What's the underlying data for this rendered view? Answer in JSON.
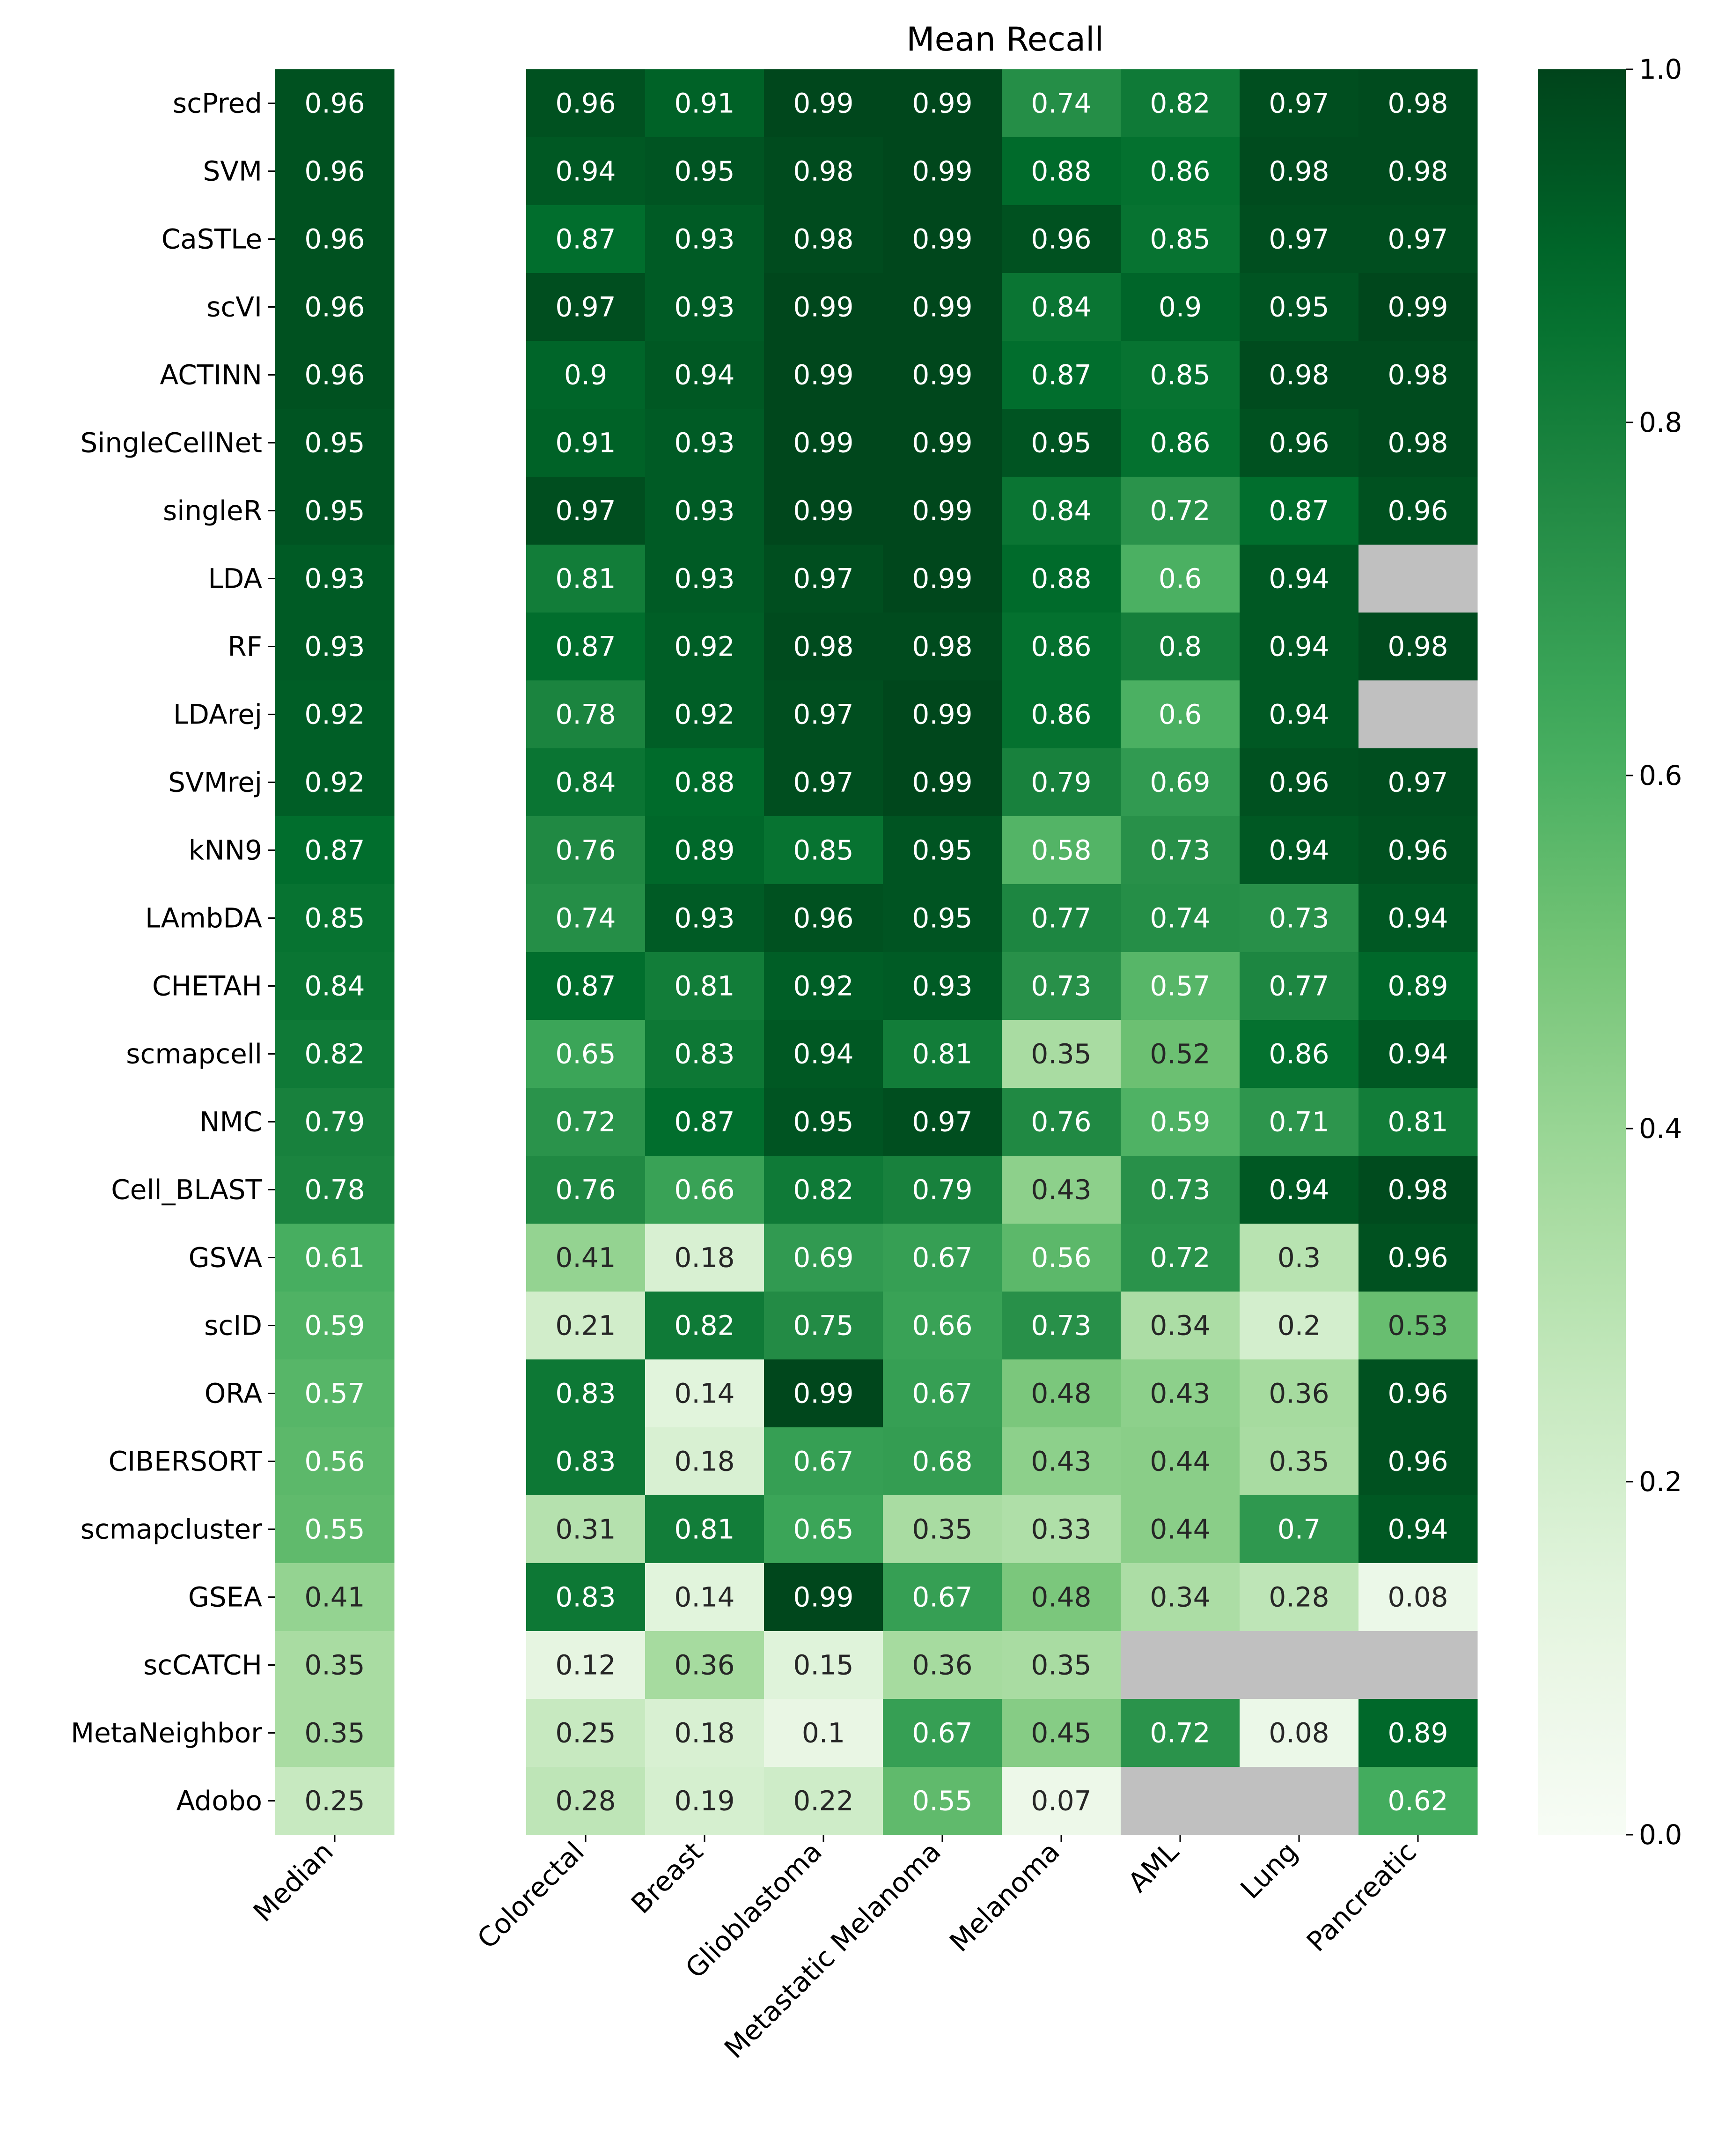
{
  "chart_data": {
    "type": "heatmap",
    "title": "Mean Recall",
    "xlabel": "",
    "ylabel": "",
    "colormap": "Greens",
    "missing_color": "#c0c0c0",
    "highlight_label_color": "#a52a2a",
    "rows": [
      "scPred",
      "SVM",
      "CaSTLe",
      "scVI",
      "ACTINN",
      "SingleCellNet",
      "singleR",
      "LDA",
      "RF",
      "LDArej",
      "SVMrej",
      "kNN9",
      "LAmbDA",
      "CHETAH",
      "scmapcell",
      "NMC",
      "Cell_BLAST",
      "GSVA",
      "scID",
      "ORA",
      "CIBERSORT",
      "scmapcluster",
      "GSEA",
      "scCATCH",
      "MetaNeighbor",
      "Adobo"
    ],
    "highlighted_rows": [
      "GSVA",
      "ORA",
      "CIBERSORT",
      "GSEA",
      "scCATCH",
      "MetaNeighbor",
      "Adobo"
    ],
    "median_column": {
      "label": "Median",
      "values": [
        0.96,
        0.96,
        0.96,
        0.96,
        0.96,
        0.95,
        0.95,
        0.93,
        0.93,
        0.92,
        0.92,
        0.87,
        0.85,
        0.84,
        0.82,
        0.79,
        0.78,
        0.61,
        0.59,
        0.57,
        0.56,
        0.55,
        0.41,
        0.35,
        0.35,
        0.25
      ]
    },
    "columns": [
      "Colorectal",
      "Breast",
      "Glioblastoma",
      "Metastatic Melanoma",
      "Melanoma",
      "AML",
      "Lung",
      "Pancreatic"
    ],
    "values": [
      [
        0.96,
        0.91,
        0.99,
        0.99,
        0.74,
        0.82,
        0.97,
        0.98
      ],
      [
        0.94,
        0.95,
        0.98,
        0.99,
        0.88,
        0.86,
        0.98,
        0.98
      ],
      [
        0.87,
        0.93,
        0.98,
        0.99,
        0.96,
        0.85,
        0.97,
        0.97
      ],
      [
        0.97,
        0.93,
        0.99,
        0.99,
        0.84,
        0.9,
        0.95,
        0.99
      ],
      [
        0.9,
        0.94,
        0.99,
        0.99,
        0.87,
        0.85,
        0.98,
        0.98
      ],
      [
        0.91,
        0.93,
        0.99,
        0.99,
        0.95,
        0.86,
        0.96,
        0.98
      ],
      [
        0.97,
        0.93,
        0.99,
        0.99,
        0.84,
        0.72,
        0.87,
        0.96
      ],
      [
        0.81,
        0.93,
        0.97,
        0.99,
        0.88,
        0.6,
        0.94,
        null
      ],
      [
        0.87,
        0.92,
        0.98,
        0.98,
        0.86,
        0.8,
        0.94,
        0.98
      ],
      [
        0.78,
        0.92,
        0.97,
        0.99,
        0.86,
        0.6,
        0.94,
        null
      ],
      [
        0.84,
        0.88,
        0.97,
        0.99,
        0.79,
        0.69,
        0.96,
        0.97
      ],
      [
        0.76,
        0.89,
        0.85,
        0.95,
        0.58,
        0.73,
        0.94,
        0.96
      ],
      [
        0.74,
        0.93,
        0.96,
        0.95,
        0.77,
        0.74,
        0.73,
        0.94
      ],
      [
        0.87,
        0.81,
        0.92,
        0.93,
        0.73,
        0.57,
        0.77,
        0.89
      ],
      [
        0.65,
        0.83,
        0.94,
        0.81,
        0.35,
        0.52,
        0.86,
        0.94
      ],
      [
        0.72,
        0.87,
        0.95,
        0.97,
        0.76,
        0.59,
        0.71,
        0.81
      ],
      [
        0.76,
        0.66,
        0.82,
        0.79,
        0.43,
        0.73,
        0.94,
        0.98
      ],
      [
        0.41,
        0.18,
        0.69,
        0.67,
        0.56,
        0.72,
        0.3,
        0.96
      ],
      [
        0.21,
        0.82,
        0.75,
        0.66,
        0.73,
        0.34,
        0.2,
        0.53
      ],
      [
        0.83,
        0.14,
        0.99,
        0.67,
        0.48,
        0.43,
        0.36,
        0.96
      ],
      [
        0.83,
        0.18,
        0.67,
        0.68,
        0.43,
        0.44,
        0.35,
        0.96
      ],
      [
        0.31,
        0.81,
        0.65,
        0.35,
        0.33,
        0.44,
        0.7,
        0.94
      ],
      [
        0.83,
        0.14,
        0.99,
        0.67,
        0.48,
        0.34,
        0.28,
        0.08
      ],
      [
        0.12,
        0.36,
        0.15,
        0.36,
        0.35,
        null,
        null,
        null
      ],
      [
        0.25,
        0.18,
        0.1,
        0.67,
        0.45,
        0.72,
        0.08,
        0.89
      ],
      [
        0.28,
        0.19,
        0.22,
        0.55,
        0.07,
        null,
        null,
        0.62
      ]
    ],
    "colorbar": {
      "range": [
        0,
        1
      ],
      "ticks": [
        "0.0",
        "0.2",
        "0.4",
        "0.6",
        "0.8",
        "1.0"
      ]
    }
  }
}
